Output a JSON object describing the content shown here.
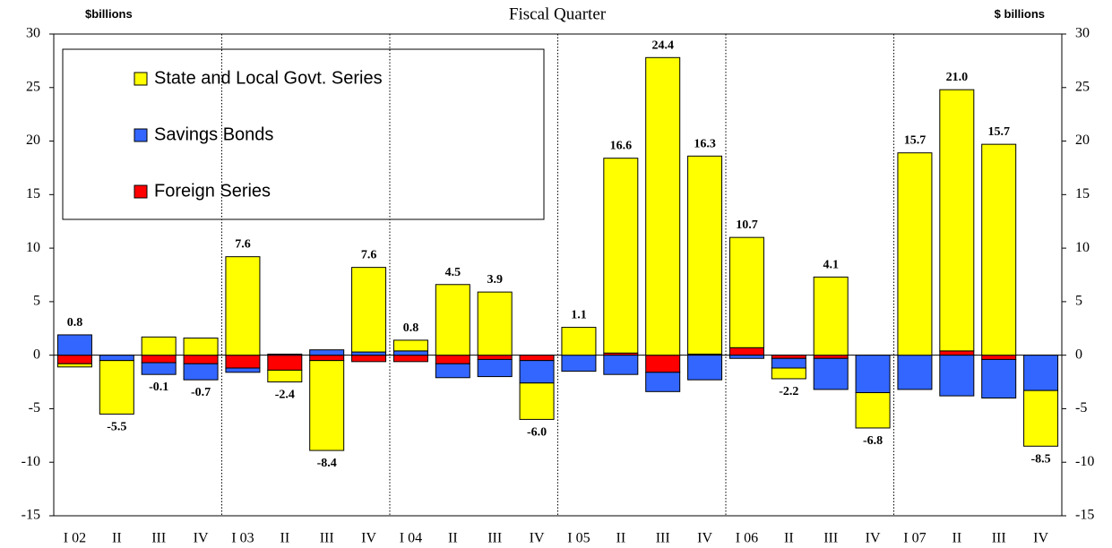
{
  "chart_data": {
    "type": "stacked-bar",
    "title": "Fiscal Quarter",
    "y_label": "$billions",
    "y2_label": "$ billions",
    "categories": [
      "I 02",
      "II",
      "III",
      "IV",
      "I 03",
      "II",
      "III",
      "IV",
      "I 04",
      "II",
      "III",
      "IV",
      "I 05",
      "II",
      "III",
      "IV",
      "I 06",
      "II",
      "III",
      "IV",
      "I 07",
      "II",
      "III",
      "IV"
    ],
    "series": [
      {
        "name": "State and Local Govt. Series",
        "color": "#ffff00",
        "values": [
          -0.3,
          -5.0,
          1.7,
          1.6,
          9.2,
          -1.1,
          -8.4,
          7.9,
          1.0,
          6.6,
          5.9,
          -3.4,
          2.6,
          18.2,
          27.8,
          18.5,
          10.3,
          -1.0,
          7.3,
          -3.3,
          18.9,
          24.4,
          19.7,
          -5.2
        ]
      },
      {
        "name": "Savings Bonds",
        "color": "#3366ff",
        "values": [
          1.9,
          -0.5,
          -1.1,
          -1.5,
          -0.4,
          0.1,
          0.5,
          0.3,
          0.4,
          -1.3,
          -1.6,
          -2.1,
          -1.5,
          -1.8,
          -1.8,
          -2.3,
          -0.3,
          -0.9,
          -2.9,
          -3.5,
          -3.2,
          -3.8,
          -3.6,
          -3.3
        ]
      },
      {
        "name": "Foreign Series",
        "color": "#ff0000",
        "values": [
          -0.8,
          0,
          -0.7,
          -0.8,
          -1.2,
          -1.4,
          -0.5,
          -0.6,
          -0.6,
          -0.8,
          -0.4,
          -0.5,
          0,
          0.2,
          -1.6,
          0.1,
          0.7,
          -0.3,
          -0.3,
          0,
          0,
          0.4,
          -0.4,
          0
        ]
      }
    ],
    "total_labels": [
      "0.8",
      "-5.5",
      "-0.1",
      "-0.7",
      "7.6",
      "-2.4",
      "-8.4",
      "7.6",
      "0.8",
      "4.5",
      "3.9",
      "-6.0",
      "1.1",
      "16.6",
      "24.4",
      "16.3",
      "10.7",
      "-2.2",
      "4.1",
      "-6.8",
      "15.7",
      "21.0",
      "15.7",
      "-8.5"
    ],
    "ylim": [
      -15,
      30
    ],
    "yticks": [
      -15,
      -10,
      -5,
      0,
      5,
      10,
      15,
      20,
      25,
      30
    ],
    "y2lim": [
      -15,
      30
    ],
    "y2ticks": [
      -15,
      -10,
      -5,
      0,
      5,
      10,
      15,
      20,
      25,
      30
    ],
    "year_dividers": true,
    "legend": "upper-left"
  }
}
